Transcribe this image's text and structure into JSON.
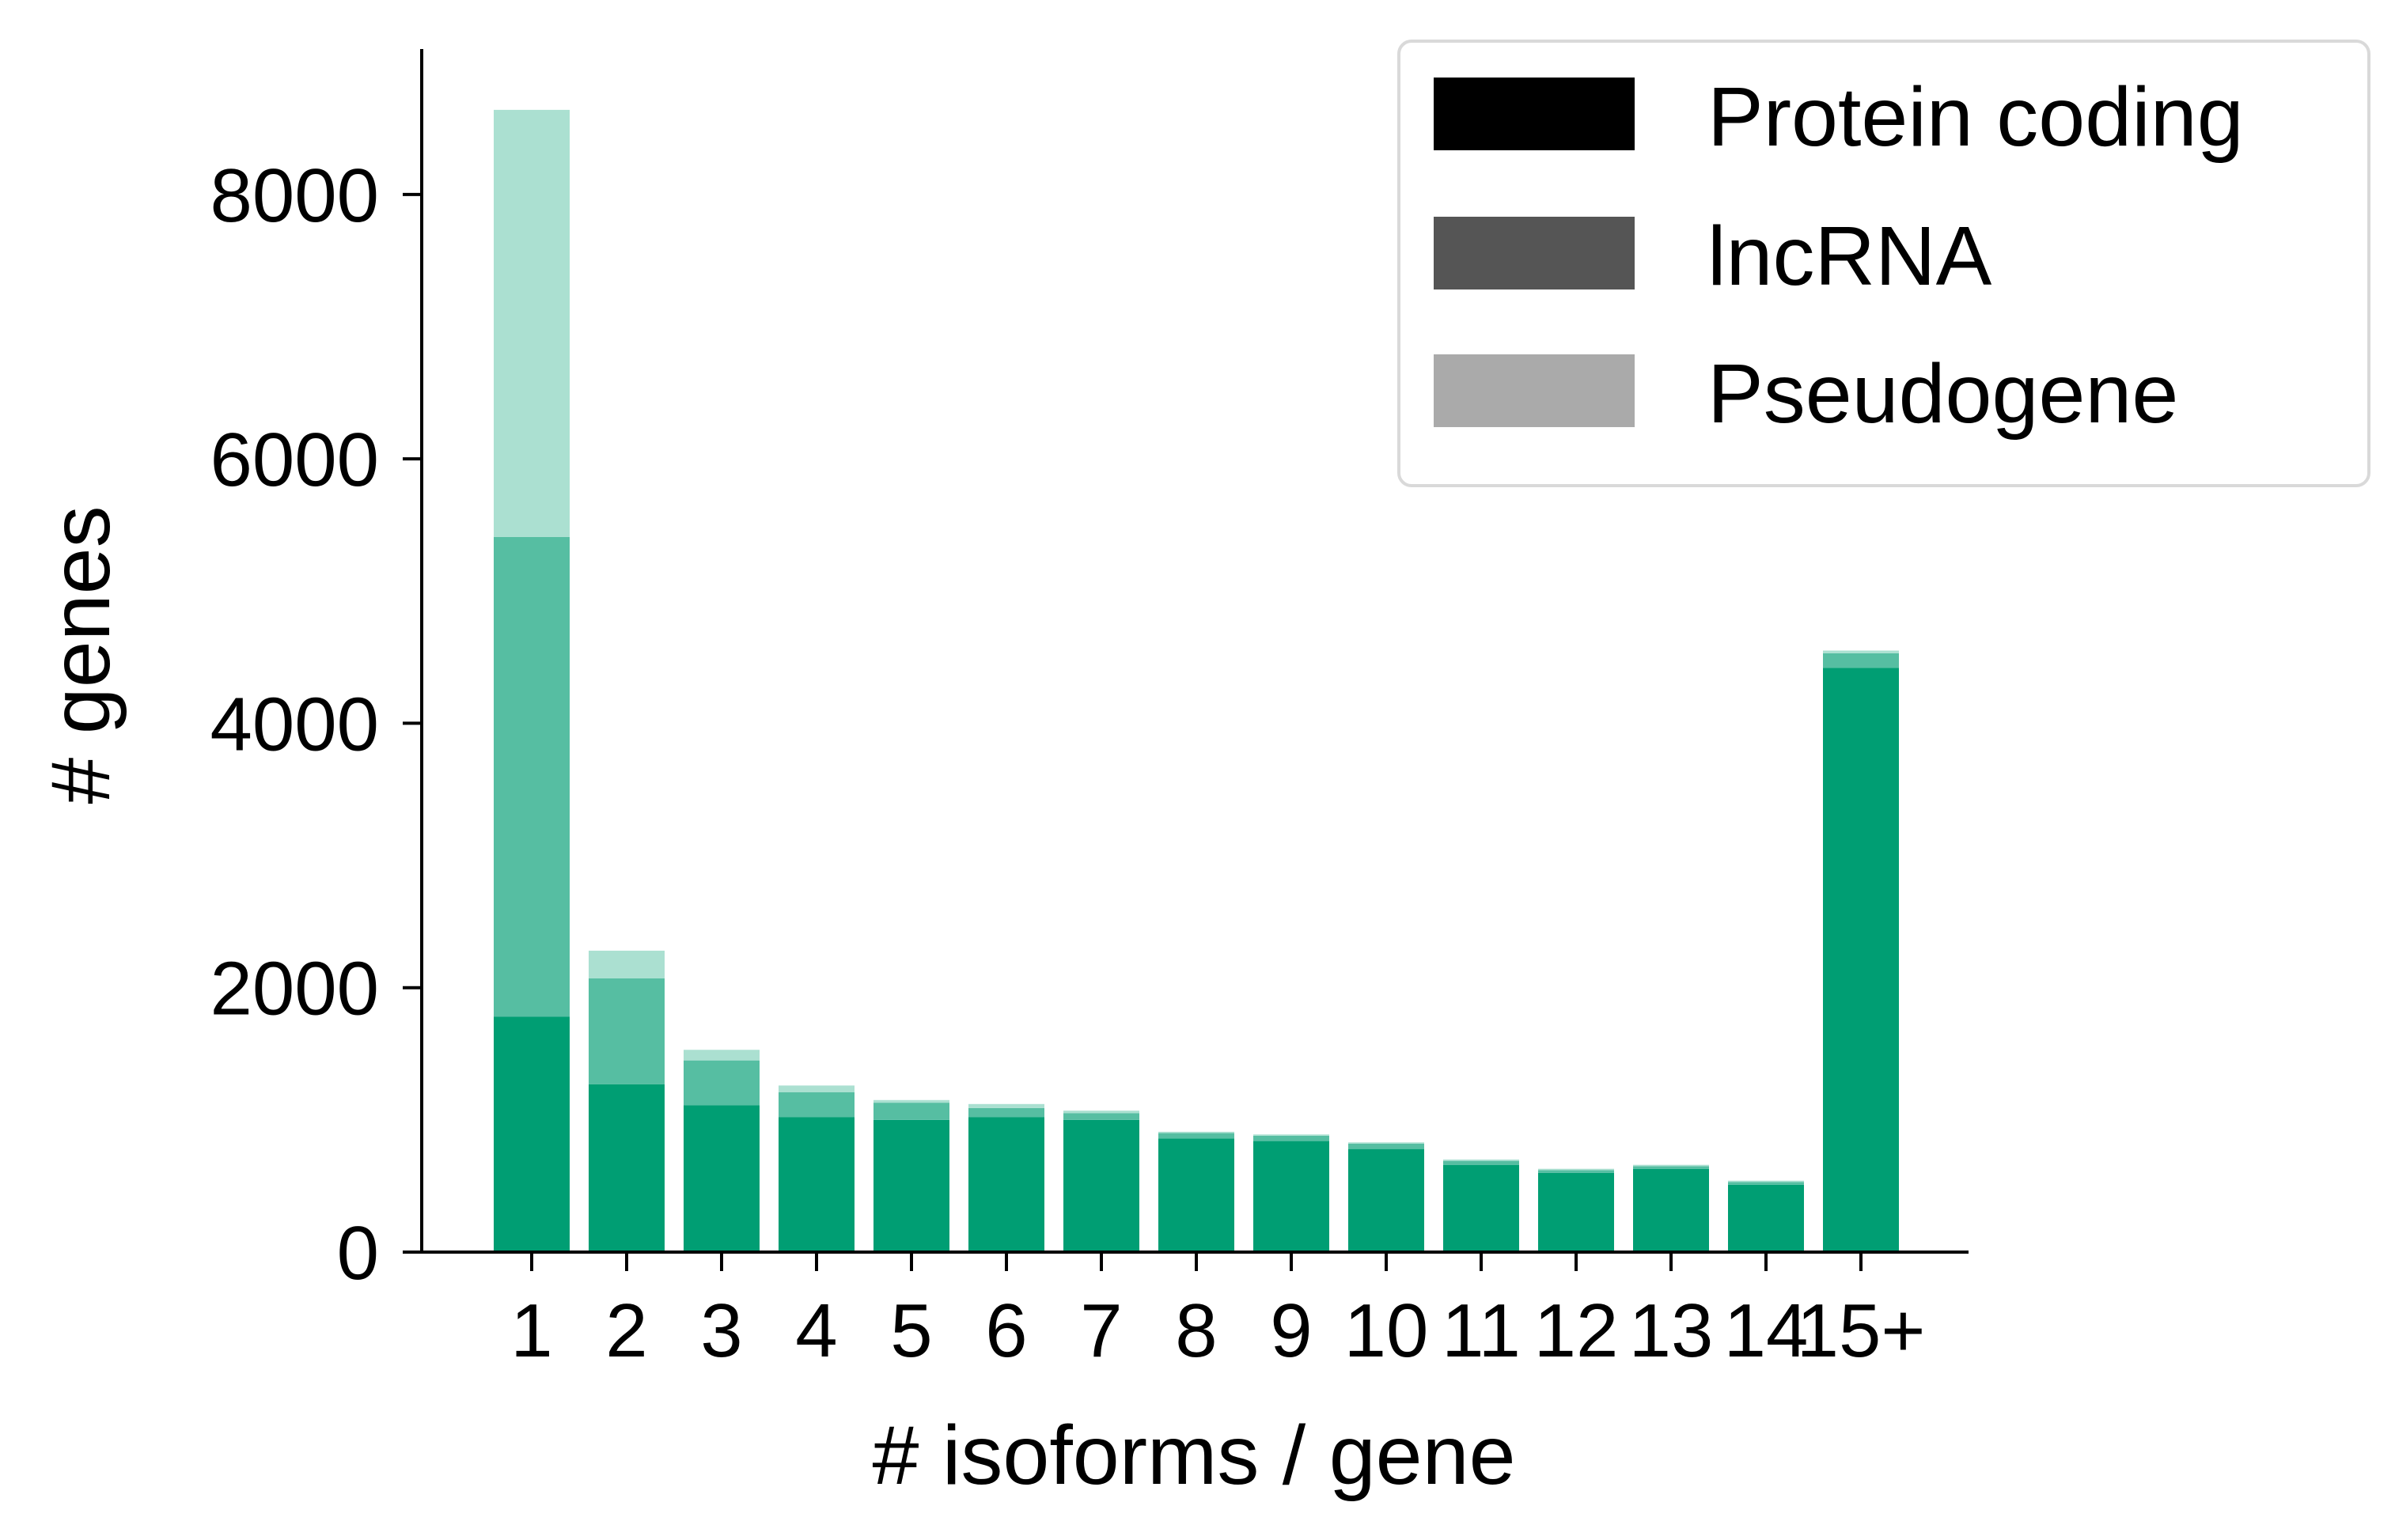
{
  "chart_data": {
    "type": "bar",
    "stacked": true,
    "title": "",
    "xlabel": "# isoforms / gene",
    "ylabel": "# genes",
    "ylim": [
      0,
      9100
    ],
    "yticks": [
      0,
      2000,
      4000,
      6000,
      8000
    ],
    "yticklabels": [
      "0",
      "2000",
      "4000",
      "6000",
      "8000"
    ],
    "categories": [
      "1",
      "2",
      "3",
      "4",
      "5",
      "6",
      "7",
      "8",
      "9",
      "10",
      "11",
      "12",
      "13",
      "14",
      "15+"
    ],
    "series": [
      {
        "name": "Protein coding",
        "color": "#009e73",
        "values": [
          1780,
          1270,
          1110,
          1020,
          1000,
          1020,
          1000,
          860,
          840,
          780,
          660,
          600,
          630,
          510,
          4420
        ]
      },
      {
        "name": "lncRNA",
        "color": "#56bea2",
        "values": [
          3630,
          800,
          340,
          190,
          130,
          70,
          50,
          40,
          40,
          40,
          30,
          20,
          20,
          20,
          110
        ]
      },
      {
        "name": "Pseudogene",
        "color": "#abe0d1",
        "values": [
          3230,
          210,
          80,
          50,
          20,
          30,
          20,
          10,
          10,
          10,
          10,
          10,
          10,
          10,
          20
        ]
      }
    ],
    "legend": {
      "placement": "top-right",
      "entries": [
        {
          "label": "Protein coding",
          "color": "#000000"
        },
        {
          "label": "lncRNA",
          "color": "#555555"
        },
        {
          "label": "Pseudogene",
          "color": "#aaaaaa"
        }
      ]
    },
    "grid": false
  }
}
